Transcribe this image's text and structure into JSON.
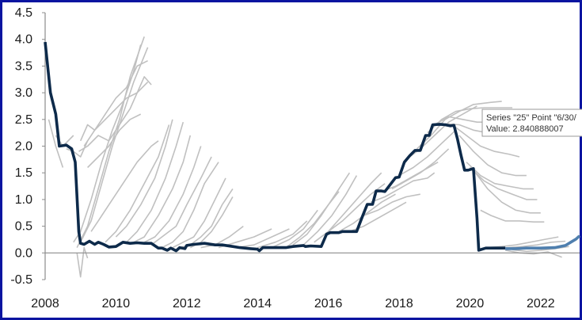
{
  "chart_data": {
    "type": "line",
    "title": "",
    "xlabel": "",
    "ylabel": "",
    "xlim": [
      2008,
      2023.1
    ],
    "ylim": [
      -0.5,
      4.5
    ],
    "x_ticks": [
      "2008",
      "2010",
      "2012",
      "2014",
      "2016",
      "2018",
      "2020",
      "2022"
    ],
    "y_ticks": [
      "4.5",
      "4.0",
      "3.5",
      "3.0",
      "2.5",
      "2.0",
      "1.5",
      "1.0",
      "0.5",
      "0.0",
      "-0.5"
    ],
    "grid": false,
    "legend": "none",
    "colors": {
      "realized": "#0d2a4a",
      "forward": "#4f7fae",
      "projection_paths": "#c0c0c0",
      "frame": "#0a14a0",
      "zero_line": "#8c8c8c"
    },
    "realized": {
      "x": [
        2008.0,
        2008.15,
        2008.3,
        2008.4,
        2008.6,
        2008.75,
        2008.85,
        2008.95,
        2009.0,
        2009.1,
        2009.25,
        2009.4,
        2009.5,
        2009.65,
        2009.8,
        2010.0,
        2010.2,
        2010.4,
        2010.6,
        2010.8,
        2011.0,
        2011.2,
        2011.3,
        2011.45,
        2011.55,
        2011.7,
        2011.8,
        2011.95,
        2012.0,
        2012.2,
        2012.5,
        2012.8,
        2013.0,
        2013.3,
        2013.5,
        2013.8,
        2014.0,
        2014.05,
        2014.15,
        2014.5,
        2014.8,
        2015.0,
        2015.3,
        2015.35,
        2015.5,
        2015.8,
        2015.95,
        2016.05,
        2016.3,
        2016.4,
        2016.8,
        2016.95,
        2017.1,
        2017.25,
        2017.35,
        2017.5,
        2017.6,
        2017.9,
        2018.0,
        2018.15,
        2018.3,
        2018.45,
        2018.6,
        2018.75,
        2018.85,
        2018.95,
        2019.15,
        2019.3,
        2019.45,
        2019.55,
        2019.65,
        2019.75,
        2019.85,
        2019.95,
        2020.1,
        2020.2,
        2020.25,
        2020.45,
        2020.7,
        2021.0
      ],
      "y": [
        3.95,
        3.0,
        2.6,
        2.0,
        2.02,
        1.95,
        1.7,
        0.4,
        0.18,
        0.16,
        0.22,
        0.16,
        0.2,
        0.16,
        0.11,
        0.12,
        0.2,
        0.18,
        0.19,
        0.18,
        0.18,
        0.09,
        0.09,
        0.05,
        0.09,
        0.04,
        0.1,
        0.08,
        0.14,
        0.16,
        0.18,
        0.15,
        0.15,
        0.12,
        0.1,
        0.08,
        0.07,
        0.04,
        0.1,
        0.1,
        0.1,
        0.12,
        0.14,
        0.12,
        0.13,
        0.12,
        0.35,
        0.38,
        0.38,
        0.4,
        0.4,
        0.66,
        0.91,
        0.91,
        1.16,
        1.16,
        1.15,
        1.41,
        1.42,
        1.7,
        1.82,
        1.92,
        1.92,
        2.2,
        2.2,
        2.4,
        2.41,
        2.4,
        2.38,
        2.39,
        2.13,
        1.83,
        1.55,
        1.55,
        1.58,
        0.65,
        0.05,
        0.09,
        0.09,
        0.09
      ]
    },
    "forward": {
      "x": [
        2021.0,
        2021.3,
        2021.6,
        2022.0,
        2022.4,
        2022.7,
        2022.85,
        2023.0,
        2023.1
      ],
      "y": [
        0.08,
        0.08,
        0.09,
        0.09,
        0.1,
        0.14,
        0.2,
        0.26,
        0.32
      ]
    },
    "projection_paths": [
      {
        "x": [
          2008.1,
          2008.3,
          2008.5
        ],
        "y": [
          2.5,
          2.0,
          1.6
        ]
      },
      {
        "x": [
          2008.3,
          2008.5,
          2008.8
        ],
        "y": [
          2.2,
          2.0,
          2.2
        ]
      },
      {
        "x": [
          2008.6,
          2008.8,
          2009.0,
          2009.2
        ],
        "y": [
          1.95,
          1.9,
          1.8,
          2.1
        ]
      },
      {
        "x": [
          2008.8,
          2009.0,
          2009.3,
          2009.6,
          2009.9,
          2010.2,
          2010.5,
          2010.7
        ],
        "y": [
          0.2,
          0.4,
          1.0,
          1.7,
          2.3,
          2.8,
          3.4,
          3.9
        ]
      },
      {
        "x": [
          2008.9,
          2009.2,
          2009.5,
          2009.8,
          2010.1,
          2010.4,
          2010.8
        ],
        "y": [
          0.1,
          0.5,
          1.2,
          1.9,
          2.5,
          3.3,
          4.05
        ]
      },
      {
        "x": [
          2009.0,
          2009.3,
          2009.6,
          2009.9,
          2010.2,
          2010.5,
          2010.9
        ],
        "y": [
          0.2,
          0.6,
          1.3,
          2.0,
          2.6,
          3.2,
          3.85
        ]
      },
      {
        "x": [
          2009.0,
          2009.2,
          2009.4,
          2009.7,
          2010.0,
          2010.3,
          2010.6,
          2010.9
        ],
        "y": [
          2.1,
          2.4,
          2.3,
          2.6,
          2.9,
          3.1,
          3.5,
          3.6
        ]
      },
      {
        "x": [
          2008.95,
          2009.2,
          2009.5,
          2009.8,
          2010.1,
          2010.4,
          2010.8,
          2011.0
        ],
        "y": [
          1.9,
          2.0,
          2.2,
          2.1,
          2.4,
          2.7,
          3.3,
          3.15
        ]
      },
      {
        "x": [
          2009.1,
          2009.4,
          2009.7,
          2010.0,
          2010.3,
          2010.6,
          2010.9
        ],
        "y": [
          2.0,
          2.3,
          2.5,
          2.7,
          2.9,
          3.0,
          3.2
        ]
      },
      {
        "x": [
          2009.2,
          2009.5,
          2009.8,
          2010.1,
          2010.4,
          2010.7
        ],
        "y": [
          1.6,
          1.8,
          2.0,
          2.3,
          2.5,
          2.6
        ]
      },
      {
        "x": [
          2008.9,
          2009.0,
          2009.1,
          2009.2
        ],
        "y": [
          0.0,
          -0.45,
          0.1,
          -0.1
        ]
      },
      {
        "x": [
          2009.3,
          2009.5,
          2009.8,
          2010.2,
          2010.6,
          2011.0,
          2011.2
        ],
        "y": [
          0.4,
          0.6,
          0.9,
          1.3,
          1.7,
          2.0,
          2.1
        ]
      },
      {
        "x": [
          2009.7,
          2010.0,
          2010.4,
          2010.8,
          2011.2,
          2011.5
        ],
        "y": [
          0.2,
          0.4,
          0.8,
          1.3,
          1.8,
          2.4
        ]
      },
      {
        "x": [
          2010.0,
          2010.3,
          2010.7,
          2011.1,
          2011.4,
          2011.6
        ],
        "y": [
          0.3,
          0.5,
          0.9,
          1.4,
          2.0,
          2.5
        ]
      },
      {
        "x": [
          2010.3,
          2010.6,
          2011.0,
          2011.4,
          2011.7,
          2011.9
        ],
        "y": [
          0.2,
          0.4,
          0.8,
          1.4,
          2.0,
          2.45
        ]
      },
      {
        "x": [
          2010.5,
          2010.8,
          2011.2,
          2011.6,
          2011.9,
          2012.1
        ],
        "y": [
          0.2,
          0.3,
          0.7,
          1.2,
          1.7,
          2.2
        ]
      },
      {
        "x": [
          2010.8,
          2011.1,
          2011.5,
          2011.9,
          2012.2,
          2012.4
        ],
        "y": [
          0.2,
          0.3,
          0.6,
          1.1,
          1.6,
          2.0
        ]
      },
      {
        "x": [
          2011.0,
          2011.3,
          2011.7,
          2012.0,
          2012.4,
          2012.7
        ],
        "y": [
          0.15,
          0.3,
          0.5,
          0.9,
          1.4,
          1.8
        ]
      },
      {
        "x": [
          2011.3,
          2011.6,
          2011.9,
          2012.2,
          2012.5,
          2012.9
        ],
        "y": [
          0.1,
          0.2,
          0.4,
          0.8,
          1.3,
          1.7
        ]
      },
      {
        "x": [
          2011.6,
          2011.9,
          2012.2,
          2012.5,
          2012.8,
          2013.1
        ],
        "y": [
          0.1,
          0.2,
          0.3,
          0.6,
          1.0,
          1.4
        ]
      },
      {
        "x": [
          2011.8,
          2012.1,
          2012.4,
          2012.7,
          2013.0,
          2013.3
        ],
        "y": [
          0.1,
          0.15,
          0.3,
          0.5,
          0.9,
          1.2
        ]
      },
      {
        "x": [
          2012.1,
          2012.4,
          2012.7,
          2013.0,
          2013.3
        ],
        "y": [
          0.1,
          0.2,
          0.4,
          0.7,
          1.05
        ]
      },
      {
        "x": [
          2012.4,
          2012.8,
          2013.2,
          2013.6
        ],
        "y": [
          0.1,
          0.15,
          0.3,
          0.5
        ]
      },
      {
        "x": [
          2012.9,
          2013.4,
          2013.9,
          2014.4
        ],
        "y": [
          0.1,
          0.2,
          0.3,
          0.45
        ]
      },
      {
        "x": [
          2013.4,
          2013.9,
          2014.4,
          2014.9
        ],
        "y": [
          0.1,
          0.15,
          0.3,
          0.45
        ]
      },
      {
        "x": [
          2014.0,
          2014.5,
          2015.0,
          2015.4
        ],
        "y": [
          0.1,
          0.2,
          0.35,
          0.6
        ]
      },
      {
        "x": [
          2014.4,
          2014.9,
          2015.3,
          2015.7
        ],
        "y": [
          0.1,
          0.25,
          0.45,
          0.8
        ]
      },
      {
        "x": [
          2014.8,
          2015.2,
          2015.6,
          2016.0,
          2016.3
        ],
        "y": [
          0.1,
          0.3,
          0.55,
          0.9,
          1.15
        ]
      },
      {
        "x": [
          2015.0,
          2015.4,
          2015.8,
          2016.2,
          2016.6
        ],
        "y": [
          0.15,
          0.35,
          0.7,
          1.1,
          1.5
        ]
      },
      {
        "x": [
          2015.3,
          2015.7,
          2016.1,
          2016.5,
          2016.8
        ],
        "y": [
          0.15,
          0.4,
          0.7,
          1.1,
          1.45
        ]
      },
      {
        "x": [
          2015.6,
          2016.0,
          2016.4,
          2016.8,
          2017.2,
          2017.5
        ],
        "y": [
          0.2,
          0.4,
          0.7,
          1.0,
          1.3,
          1.5
        ]
      },
      {
        "x": [
          2016.0,
          2016.4,
          2016.8,
          2017.2,
          2017.6
        ],
        "y": [
          0.4,
          0.6,
          0.85,
          1.1,
          1.3
        ]
      },
      {
        "x": [
          2016.3,
          2016.7,
          2017.1,
          2017.5,
          2017.9
        ],
        "y": [
          0.4,
          0.55,
          0.75,
          0.95,
          1.1
        ]
      },
      {
        "x": [
          2016.6,
          2017.0,
          2017.4,
          2017.8,
          2018.2
        ],
        "y": [
          0.4,
          0.5,
          0.65,
          0.8,
          0.95
        ]
      },
      {
        "x": [
          2017.0,
          2017.4,
          2017.8,
          2018.2,
          2018.6
        ],
        "y": [
          0.7,
          0.8,
          0.95,
          1.05,
          1.1
        ]
      },
      {
        "x": [
          2017.2,
          2017.6,
          2018.0,
          2018.4,
          2018.8,
          2019.0
        ],
        "y": [
          0.95,
          1.05,
          1.2,
          1.35,
          1.4,
          1.5
        ]
      },
      {
        "x": [
          2017.5,
          2017.9,
          2018.3,
          2018.7,
          2019.1
        ],
        "y": [
          1.15,
          1.25,
          1.4,
          1.55,
          1.7
        ]
      },
      {
        "x": [
          2017.8,
          2018.2,
          2018.6,
          2019.0,
          2019.4
        ],
        "y": [
          1.2,
          1.35,
          1.5,
          1.7,
          1.95
        ]
      },
      {
        "x": [
          2018.0,
          2018.4,
          2018.8,
          2019.2,
          2019.6
        ],
        "y": [
          1.45,
          1.6,
          1.8,
          2.05,
          2.3
        ]
      },
      {
        "x": [
          2018.2,
          2018.6,
          2019.0,
          2019.4,
          2019.8,
          2020.2
        ],
        "y": [
          1.75,
          1.95,
          2.2,
          2.45,
          2.6,
          2.75
        ]
      },
      {
        "x": [
          2018.5,
          2018.9,
          2019.3,
          2019.7,
          2020.1,
          2020.6,
          2020.9
        ],
        "y": [
          1.95,
          2.2,
          2.5,
          2.65,
          2.78,
          2.82,
          2.84
        ]
      },
      {
        "x": [
          2018.8,
          2019.2,
          2019.6,
          2020.0,
          2020.4,
          2020.8,
          2021.2
        ],
        "y": [
          2.25,
          2.5,
          2.65,
          2.7,
          2.72,
          2.72,
          2.72
        ]
      },
      {
        "x": [
          2019.0,
          2019.4,
          2019.8,
          2020.2,
          2020.6,
          2021.0,
          2021.3
        ],
        "y": [
          2.4,
          2.55,
          2.5,
          2.45,
          2.45,
          2.42,
          2.42
        ]
      },
      {
        "x": [
          2019.3,
          2019.7,
          2020.1,
          2020.5,
          2020.9,
          2021.4
        ],
        "y": [
          2.42,
          2.4,
          2.3,
          2.25,
          2.2,
          2.2
        ]
      },
      {
        "x": [
          2019.5,
          2019.9,
          2020.3,
          2020.7,
          2021.1,
          2021.4
        ],
        "y": [
          2.4,
          2.2,
          2.0,
          1.9,
          1.85,
          1.8
        ]
      },
      {
        "x": [
          2019.7,
          2020.1,
          2020.5,
          2020.9,
          2021.3,
          2021.6
        ],
        "y": [
          2.2,
          1.9,
          1.65,
          1.5,
          1.45,
          1.45
        ]
      },
      {
        "x": [
          2019.9,
          2020.3,
          2020.7,
          2021.1,
          2021.5,
          2021.8
        ],
        "y": [
          1.7,
          1.45,
          1.3,
          1.25,
          1.2,
          1.2
        ]
      },
      {
        "x": [
          2020.0,
          2020.4,
          2020.8,
          2021.2,
          2021.6,
          2021.9
        ],
        "y": [
          1.6,
          1.35,
          1.2,
          1.1,
          1.0,
          1.0
        ]
      },
      {
        "x": [
          2020.1,
          2020.5,
          2020.9,
          2021.3,
          2021.7,
          2022.0
        ],
        "y": [
          1.55,
          1.2,
          0.95,
          0.8,
          0.75,
          0.75
        ]
      },
      {
        "x": [
          2020.3,
          2020.6,
          2021.0,
          2021.4,
          2021.8,
          2022.1
        ],
        "y": [
          0.8,
          0.7,
          0.6,
          0.6,
          0.58,
          0.58
        ]
      },
      {
        "x": [
          2020.5,
          2020.9,
          2021.3,
          2021.7,
          2022.1,
          2022.5
        ],
        "y": [
          0.1,
          0.12,
          0.15,
          0.2,
          0.25,
          0.3
        ]
      },
      {
        "x": [
          2020.7,
          2021.1,
          2021.5,
          2021.9,
          2022.3,
          2022.7
        ],
        "y": [
          0.08,
          0.1,
          0.12,
          0.15,
          0.2,
          0.22
        ]
      },
      {
        "x": [
          2021.0,
          2021.4,
          2021.8,
          2022.2,
          2022.6
        ],
        "y": [
          0.05,
          0.0,
          -0.02,
          0.02,
          -0.08
        ]
      },
      {
        "x": [
          2021.2,
          2021.6,
          2022.0,
          2022.4,
          2022.8
        ],
        "y": [
          0.06,
          0.03,
          0.05,
          0.08,
          0.12
        ]
      }
    ],
    "tooltip": {
      "line1": "Series \"25\" Point \"6/30/",
      "line2": "Value: 2.840888007"
    }
  }
}
